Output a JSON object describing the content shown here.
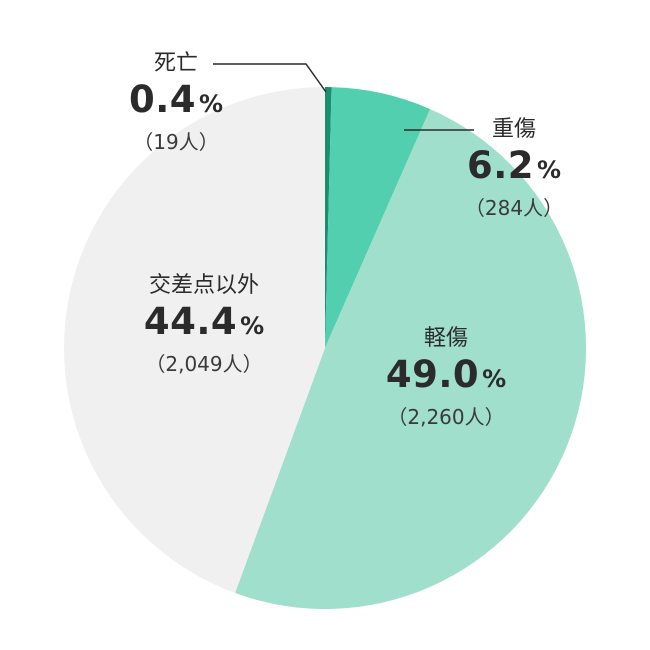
{
  "chart_data": {
    "type": "pie",
    "slices": [
      {
        "label": "死亡",
        "percent": 0.4,
        "percent_text": "0.4",
        "unit": "%",
        "count_text": "（19人）",
        "color": "#1a8f6e"
      },
      {
        "label": "重傷",
        "percent": 6.2,
        "percent_text": "6.2",
        "unit": "%",
        "count_text": "（284人）",
        "color": "#52cfae"
      },
      {
        "label": "軽傷",
        "percent": 49.0,
        "percent_text": "49.0",
        "unit": "%",
        "count_text": "（2,260人）",
        "color": "#a0dfcb"
      },
      {
        "label": "交差点以外",
        "percent": 44.4,
        "percent_text": "44.4",
        "unit": "%",
        "count_text": "（2,049人）",
        "color": "#f0f0f0"
      }
    ],
    "start_angle_deg": 0,
    "direction": "clockwise",
    "leader_line_color": "#2b2b2b"
  }
}
